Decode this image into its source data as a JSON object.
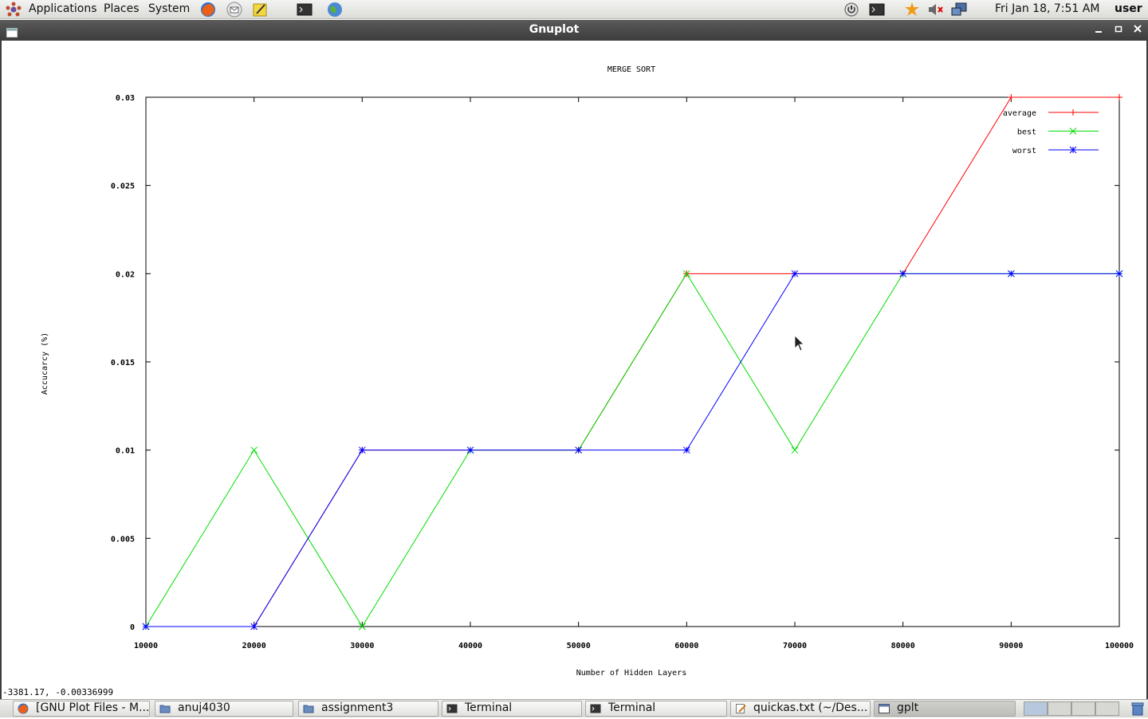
{
  "top_panel": {
    "menus": [
      "Applications",
      "Places",
      "System"
    ],
    "launchers": [
      "firefox-icon",
      "mail-icon",
      "notes-icon",
      "terminal-icon",
      "network-globe-icon"
    ],
    "tray": [
      "power-icon",
      "terminal-icon",
      "update-notifier-icon",
      "volume-muted-icon",
      "network-icon"
    ],
    "clock": "Fri Jan 18,  7:51 AM",
    "user": "user"
  },
  "window": {
    "title": "Gnuplot",
    "status_coords": "-3381.17, -0.00336999"
  },
  "chart_data": {
    "type": "line",
    "title": "MERGE SORT",
    "xlabel": "Number of Hidden Layers",
    "ylabel": "Accucarcy (%)",
    "xlim": [
      10000,
      100000
    ],
    "ylim": [
      0,
      0.03
    ],
    "x_ticks": [
      "10000",
      "20000",
      "30000",
      "40000",
      "50000",
      "60000",
      "70000",
      "80000",
      "90000",
      "100000"
    ],
    "y_ticks": [
      "0",
      "0.005",
      "0.01",
      "0.015",
      "0.02",
      "0.025",
      "0.03"
    ],
    "x": [
      10000,
      20000,
      30000,
      40000,
      50000,
      60000,
      70000,
      80000,
      90000,
      100000
    ],
    "legend_position": "top-right",
    "grid": false,
    "series": [
      {
        "name": "average",
        "color": "#ff0000",
        "marker": "plus",
        "values": [
          0,
          0,
          0.01,
          0.01,
          0.01,
          0.02,
          0.02,
          0.02,
          0.03,
          0.03
        ]
      },
      {
        "name": "best",
        "color": "#00dd00",
        "marker": "cross",
        "values": [
          0,
          0.01,
          0,
          0.01,
          0.01,
          0.02,
          0.01,
          0.02,
          0.02,
          0.02
        ]
      },
      {
        "name": "worst",
        "color": "#0000ff",
        "marker": "star",
        "values": [
          0,
          0,
          0.01,
          0.01,
          0.01,
          0.01,
          0.02,
          0.02,
          0.02,
          0.02
        ]
      }
    ]
  },
  "taskbar": {
    "items": [
      {
        "label": "[GNU Plot Files - M...",
        "icon": "firefox-icon"
      },
      {
        "label": "anuj4030",
        "icon": "folder-icon"
      },
      {
        "label": "assignment3",
        "icon": "folder-icon"
      },
      {
        "label": "Terminal",
        "icon": "terminal-icon"
      },
      {
        "label": "Terminal",
        "icon": "terminal-icon"
      },
      {
        "label": "quickas.txt (~/Des...",
        "icon": "text-editor-icon"
      },
      {
        "label": "gplt",
        "icon": "window-icon"
      }
    ]
  }
}
